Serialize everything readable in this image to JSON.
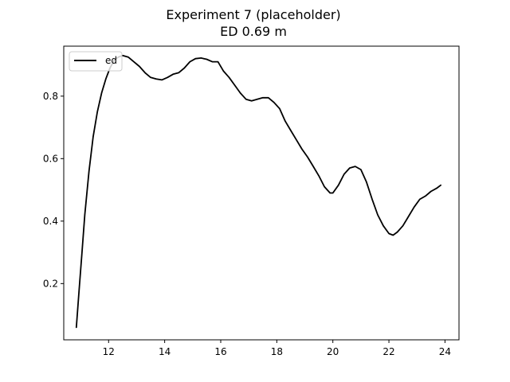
{
  "chart_data": {
    "type": "line",
    "title": "Experiment 7 (placeholder)",
    "subtitle": "ED 0.69 m",
    "xlabel": "",
    "ylabel": "",
    "xlim": [
      10.4,
      24.5
    ],
    "ylim": [
      0.02,
      0.96
    ],
    "xticks": [
      12,
      14,
      16,
      18,
      20,
      22,
      24
    ],
    "yticks": [
      0.2,
      0.4,
      0.6,
      0.8
    ],
    "grid": false,
    "legend_position": "top-left",
    "series": [
      {
        "name": "ed",
        "color": "#000000",
        "x": [
          10.85,
          10.95,
          11.05,
          11.15,
          11.3,
          11.45,
          11.6,
          11.75,
          11.9,
          12.05,
          12.2,
          12.35,
          12.5,
          12.7,
          12.9,
          13.1,
          13.3,
          13.5,
          13.7,
          13.9,
          14.1,
          14.3,
          14.5,
          14.7,
          14.9,
          15.1,
          15.3,
          15.5,
          15.7,
          15.9,
          16.1,
          16.3,
          16.5,
          16.7,
          16.9,
          17.1,
          17.3,
          17.5,
          17.7,
          17.9,
          18.1,
          18.3,
          18.5,
          18.7,
          18.9,
          19.1,
          19.3,
          19.5,
          19.7,
          19.9,
          20.0,
          20.2,
          20.4,
          20.6,
          20.8,
          21.0,
          21.2,
          21.4,
          21.6,
          21.8,
          22.0,
          22.15,
          22.3,
          22.5,
          22.7,
          22.9,
          23.1,
          23.3,
          23.5,
          23.7,
          23.85
        ],
        "values": [
          0.06,
          0.18,
          0.3,
          0.42,
          0.56,
          0.67,
          0.75,
          0.81,
          0.855,
          0.89,
          0.915,
          0.925,
          0.93,
          0.925,
          0.91,
          0.895,
          0.875,
          0.86,
          0.855,
          0.852,
          0.86,
          0.87,
          0.875,
          0.89,
          0.91,
          0.92,
          0.922,
          0.918,
          0.91,
          0.91,
          0.88,
          0.86,
          0.835,
          0.81,
          0.79,
          0.785,
          0.79,
          0.795,
          0.795,
          0.78,
          0.76,
          0.72,
          0.69,
          0.66,
          0.63,
          0.605,
          0.575,
          0.545,
          0.51,
          0.49,
          0.49,
          0.515,
          0.55,
          0.57,
          0.575,
          0.565,
          0.525,
          0.47,
          0.42,
          0.385,
          0.36,
          0.355,
          0.365,
          0.385,
          0.415,
          0.445,
          0.47,
          0.48,
          0.495,
          0.505,
          0.515
        ]
      }
    ]
  }
}
